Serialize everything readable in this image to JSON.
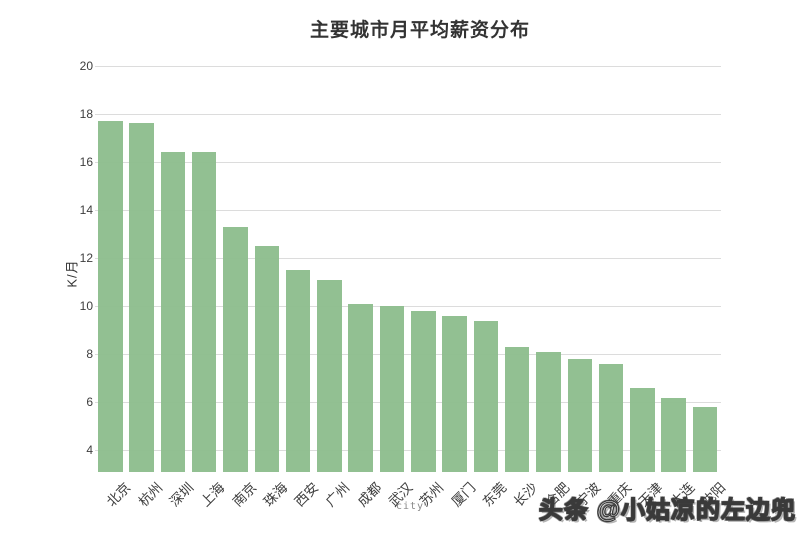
{
  "page": {
    "background": "#ffffff"
  },
  "chart_data": {
    "type": "bar",
    "title": "主要城市月平均薪资分布",
    "xlabel": "city",
    "ylabel": "K/月",
    "categories": [
      "北京",
      "杭州",
      "深圳",
      "上海",
      "南京",
      "珠海",
      "西安",
      "广州",
      "成都",
      "武汉",
      "苏州",
      "厦门",
      "东莞",
      "长沙",
      "合肥",
      "宁波",
      "重庆",
      "天津",
      "大连",
      "沈阳"
    ],
    "values": [
      17.7,
      17.6,
      16.4,
      16.4,
      13.3,
      12.5,
      11.5,
      11.1,
      10.1,
      10.0,
      9.8,
      9.6,
      9.4,
      8.3,
      8.1,
      7.8,
      7.6,
      6.6,
      6.2,
      5.8
    ],
    "yticks": [
      4,
      6,
      8,
      10,
      12,
      14,
      16,
      18,
      20
    ],
    "ylim": [
      3.1,
      20.4
    ],
    "grid": "horizontal-only",
    "legend": "none",
    "xtick_rotation": 45,
    "bar_color": "#8cbd8c"
  },
  "watermark": {
    "text": "头条 @小姑凉的左边兜"
  },
  "colors": {
    "bar": "#8cbd8c",
    "gridline": "#dcdcdc",
    "tick_label": "#3d3d3d",
    "title": "#333333",
    "xlabel": "#888888",
    "watermark_fill": "#ffffff",
    "watermark_stroke": "#3a3a3a"
  }
}
